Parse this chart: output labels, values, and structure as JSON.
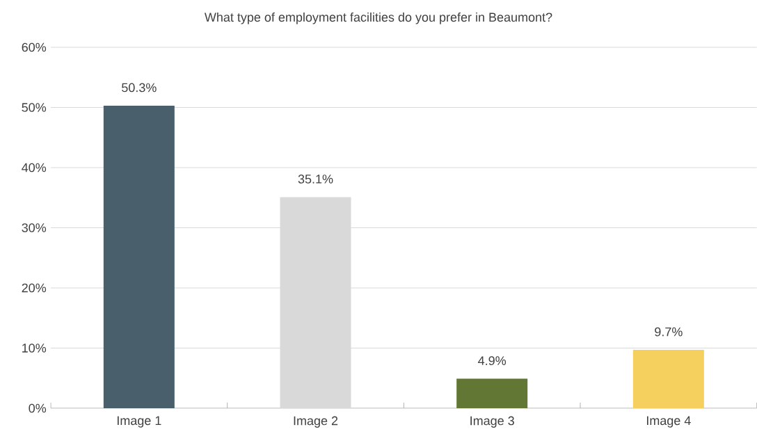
{
  "chart_data": {
    "type": "bar",
    "title": "What type of employment facilities do you prefer in Beaumont?",
    "categories": [
      "Image 1",
      "Image 2",
      "Image 3",
      "Image 4"
    ],
    "values": [
      50.3,
      35.1,
      4.9,
      9.7
    ],
    "value_labels": [
      "50.3%",
      "35.1%",
      "4.9%",
      "9.7%"
    ],
    "colors": [
      "#4a5f6c",
      "#d9d9d9",
      "#627734",
      "#f5d05e"
    ],
    "ylim": [
      0,
      60
    ],
    "yticks": [
      {
        "value": 0,
        "label": "0%"
      },
      {
        "value": 10,
        "label": "10%"
      },
      {
        "value": 20,
        "label": "20%"
      },
      {
        "value": 30,
        "label": "30%"
      },
      {
        "value": 40,
        "label": "40%"
      },
      {
        "value": 50,
        "label": "50%"
      },
      {
        "value": 60,
        "label": "60%"
      }
    ],
    "grid": "y"
  }
}
